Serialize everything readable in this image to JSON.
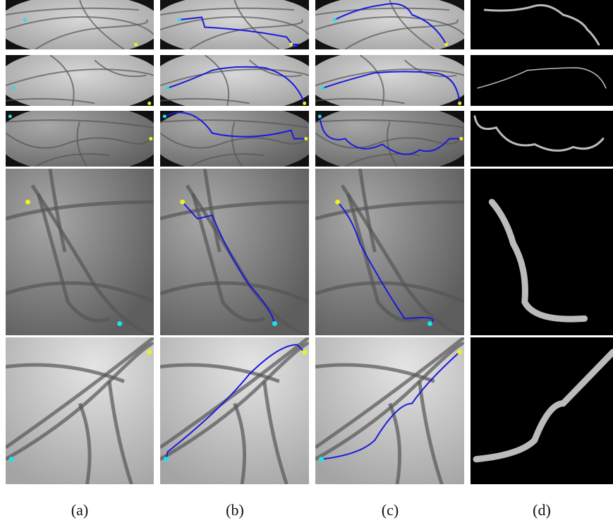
{
  "captions": [
    "(a)",
    "(b)",
    "(c)",
    "(d)"
  ]
}
